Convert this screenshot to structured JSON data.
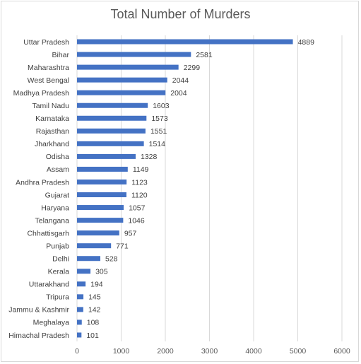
{
  "chart_data": {
    "type": "bar",
    "orientation": "horizontal",
    "title": "Total Number of Murders",
    "xlabel": "",
    "ylabel": "",
    "xlim": [
      0,
      6000
    ],
    "x_ticks": [
      "0",
      "1000",
      "2000",
      "3000",
      "4000",
      "5000",
      "6000"
    ],
    "grid": "vertical",
    "legend": "none",
    "bar_color": "#4472c4",
    "categories": [
      "Uttar Pradesh",
      "Bihar",
      "Maharashtra",
      "West Bengal",
      "Madhya Pradesh",
      "Tamil Nadu",
      "Karnataka",
      "Rajasthan",
      "Jharkhand",
      "Odisha",
      "Assam",
      "Andhra Pradesh",
      "Gujarat",
      "Haryana",
      "Telangana",
      "Chhattisgarh",
      "Punjab",
      "Delhi",
      "Kerala",
      "Uttarakhand",
      "Tripura",
      "Jammu & Kashmir",
      "Meghalaya",
      "Himachal Pradesh"
    ],
    "values": [
      4889,
      2581,
      2299,
      2044,
      2004,
      1603,
      1573,
      1551,
      1514,
      1328,
      1149,
      1123,
      1120,
      1057,
      1046,
      957,
      771,
      528,
      305,
      194,
      145,
      142,
      108,
      101
    ],
    "data_labels": [
      "4889",
      "2581",
      "2299",
      "2044",
      "2004",
      "1603",
      "1573",
      "1551",
      "1514",
      "1328",
      "1149",
      "1123",
      "1120",
      "1057",
      "1046",
      "957",
      "771",
      "528",
      "305",
      "194",
      "145",
      "142",
      "108",
      "101"
    ]
  }
}
